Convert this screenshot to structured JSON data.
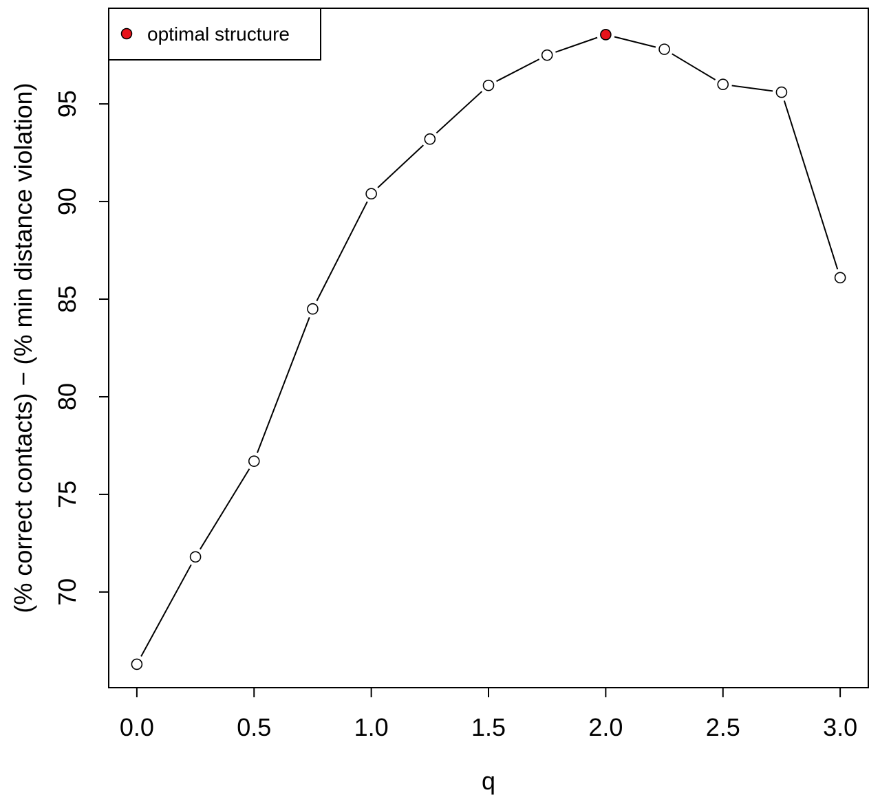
{
  "chart_data": {
    "type": "line",
    "xlabel": "q",
    "ylabel": "(% correct contacts) − (% min distance violation)",
    "x": [
      0.0,
      0.25,
      0.5,
      0.75,
      1.0,
      1.25,
      1.5,
      1.75,
      2.0,
      2.25,
      2.5,
      2.75,
      3.0
    ],
    "y": [
      66.3,
      71.8,
      76.7,
      84.5,
      90.4,
      93.2,
      95.95,
      97.5,
      98.55,
      97.8,
      96.0,
      95.6,
      86.1
    ],
    "optimal_index": 8,
    "xticks": [
      "0.0",
      "0.5",
      "1.0",
      "1.5",
      "2.0",
      "2.5",
      "3.0"
    ],
    "yticks": [
      "70",
      "75",
      "80",
      "85",
      "90",
      "95"
    ],
    "xlim": [
      -0.12,
      3.12
    ],
    "ylim": [
      65.1,
      99.9
    ],
    "grid": false,
    "legend": {
      "position": "top-left",
      "entries": [
        {
          "label": "optimal structure",
          "marker_color": "#e8131b"
        }
      ]
    },
    "colors": {
      "line": "#000000",
      "open_marker_fill": "#ffffff",
      "optimal_marker_fill": "#e8131b"
    }
  }
}
